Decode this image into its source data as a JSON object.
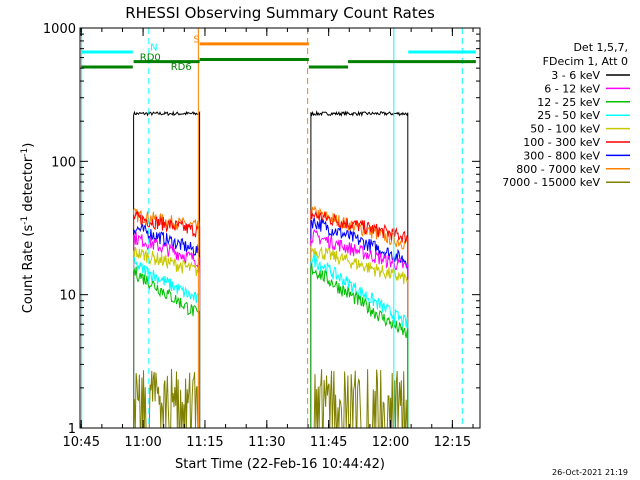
{
  "chart_data": {
    "type": "line",
    "title": "RHESSI Observing Summary Count Rates",
    "xlabel": "Start Time (22-Feb-16 10:44:42)",
    "ylabel_main": "Count Rate (s",
    "ylabel_sup1": "-1",
    "ylabel_mid": " detector",
    "ylabel_sup2": "-1",
    "ylabel_end": ")",
    "yscale": "log",
    "ylim": [
      1,
      1000
    ],
    "xlim_minutes": [
      0,
      97
    ],
    "x_ticks": [
      {
        "m": 0.3,
        "label": "10:45"
      },
      {
        "m": 15.3,
        "label": "11:00"
      },
      {
        "m": 30.3,
        "label": "11:15"
      },
      {
        "m": 45.3,
        "label": "11:30"
      },
      {
        "m": 60.3,
        "label": "11:45"
      },
      {
        "m": 75.3,
        "label": "12:00"
      },
      {
        "m": 90.3,
        "label": "12:15"
      }
    ],
    "y_ticks": [
      {
        "v": 1,
        "label": "1"
      },
      {
        "v": 10,
        "label": "10"
      },
      {
        "v": 100,
        "label": "100"
      },
      {
        "v": 1000,
        "label": "1000"
      }
    ],
    "legend": {
      "header1": "Det 1,5,7,",
      "header2": "FDecim 1, Att 0",
      "entries": [
        {
          "label": "3 - 6 keV",
          "color": "#000000"
        },
        {
          "label": "6 - 12 keV",
          "color": "#ff00ff"
        },
        {
          "label": "12 - 25 keV",
          "color": "#00c000"
        },
        {
          "label": "25 - 50 keV",
          "color": "#00ffff"
        },
        {
          "label": "50 - 100 keV",
          "color": "#c8c800"
        },
        {
          "label": "100 - 300 keV",
          "color": "#ff0000"
        },
        {
          "label": "300 - 800 keV",
          "color": "#0000ff"
        },
        {
          "label": "800 - 7000 keV",
          "color": "#ff8000"
        },
        {
          "label": "7000 - 15000 keV",
          "color": "#808000"
        }
      ]
    },
    "intervals": [
      [
        13.0,
        29.0
      ],
      [
        56.0,
        79.5
      ]
    ],
    "series": [
      {
        "name": "3 - 6 keV",
        "color": "#000000",
        "levels": [
          [
            228,
            228
          ],
          [
            228,
            228
          ]
        ]
      },
      {
        "name": "800 - 7000 keV",
        "color": "#ff8000",
        "levels": [
          [
            40,
            32
          ],
          [
            42,
            24
          ]
        ]
      },
      {
        "name": "100 - 300 keV",
        "color": "#ff0000",
        "levels": [
          [
            38,
            30
          ],
          [
            40,
            27
          ]
        ]
      },
      {
        "name": "300 - 800 keV",
        "color": "#0000ff",
        "levels": [
          [
            32,
            21
          ],
          [
            36,
            18
          ]
        ]
      },
      {
        "name": "6 - 12 keV",
        "color": "#ff00ff",
        "levels": [
          [
            27,
            18
          ],
          [
            28,
            16
          ]
        ]
      },
      {
        "name": "50 - 100 keV",
        "color": "#c8c800",
        "levels": [
          [
            21,
            15
          ],
          [
            22,
            13
          ]
        ]
      },
      {
        "name": "25 - 50 keV",
        "color": "#00ffff",
        "levels": [
          [
            17,
            9
          ],
          [
            19,
            6
          ]
        ]
      },
      {
        "name": "12 - 25 keV",
        "color": "#00c000",
        "levels": [
          [
            15,
            7
          ],
          [
            16,
            5
          ]
        ]
      },
      {
        "name": "7000 - 15000 keV",
        "color": "#808000",
        "levels": [
          [
            2,
            1
          ],
          [
            2,
            1
          ]
        ]
      }
    ],
    "annotations": {
      "attenuator_state": [
        {
          "start": 0.3,
          "end": 12.8,
          "y": 660,
          "color": "#00ffff"
        },
        {
          "start": 79.6,
          "end": 96.0,
          "y": 660,
          "color": "#00ffff"
        },
        {
          "start": 29.0,
          "end": 55.5,
          "y": 760,
          "color": "#ff8000"
        },
        {
          "start": 0.3,
          "end": 12.8,
          "y": 510,
          "color": "#008000"
        },
        {
          "start": 13.0,
          "end": 29.0,
          "y": 560,
          "color": "#008000"
        },
        {
          "start": 29.0,
          "end": 55.5,
          "y": 580,
          "color": "#008000"
        },
        {
          "start": 55.5,
          "end": 65.0,
          "y": 510,
          "color": "#008000"
        },
        {
          "start": 65.0,
          "end": 96.0,
          "y": 560,
          "color": "#008000"
        }
      ],
      "labels": [
        {
          "text": "N",
          "m": 17.0,
          "y": 680,
          "color": "#00ffff"
        },
        {
          "text": "RD0",
          "m": 14.5,
          "y": 570,
          "color": "#008000"
        },
        {
          "text": "RD6",
          "m": 22.0,
          "y": 485,
          "color": "#008000"
        },
        {
          "text": "S",
          "m": 27.5,
          "y": 780,
          "color": "#ff8000"
        }
      ],
      "vlines": [
        {
          "m": 0.4,
          "style": "solid",
          "color": "#00ffff"
        },
        {
          "m": 16.7,
          "style": "dashed",
          "color": "#00ffff"
        },
        {
          "m": 28.7,
          "style": "solid",
          "color": "#ff8000"
        },
        {
          "m": 55.2,
          "style": "dashed",
          "color": "#ff8000"
        },
        {
          "m": 76.1,
          "style": "solid",
          "color": "#00ffff"
        },
        {
          "m": 92.7,
          "style": "dashed",
          "color": "#00ffff"
        }
      ]
    },
    "grid": false,
    "legend_position": "right"
  },
  "timestamp": "26-Oct-2021 21:19"
}
